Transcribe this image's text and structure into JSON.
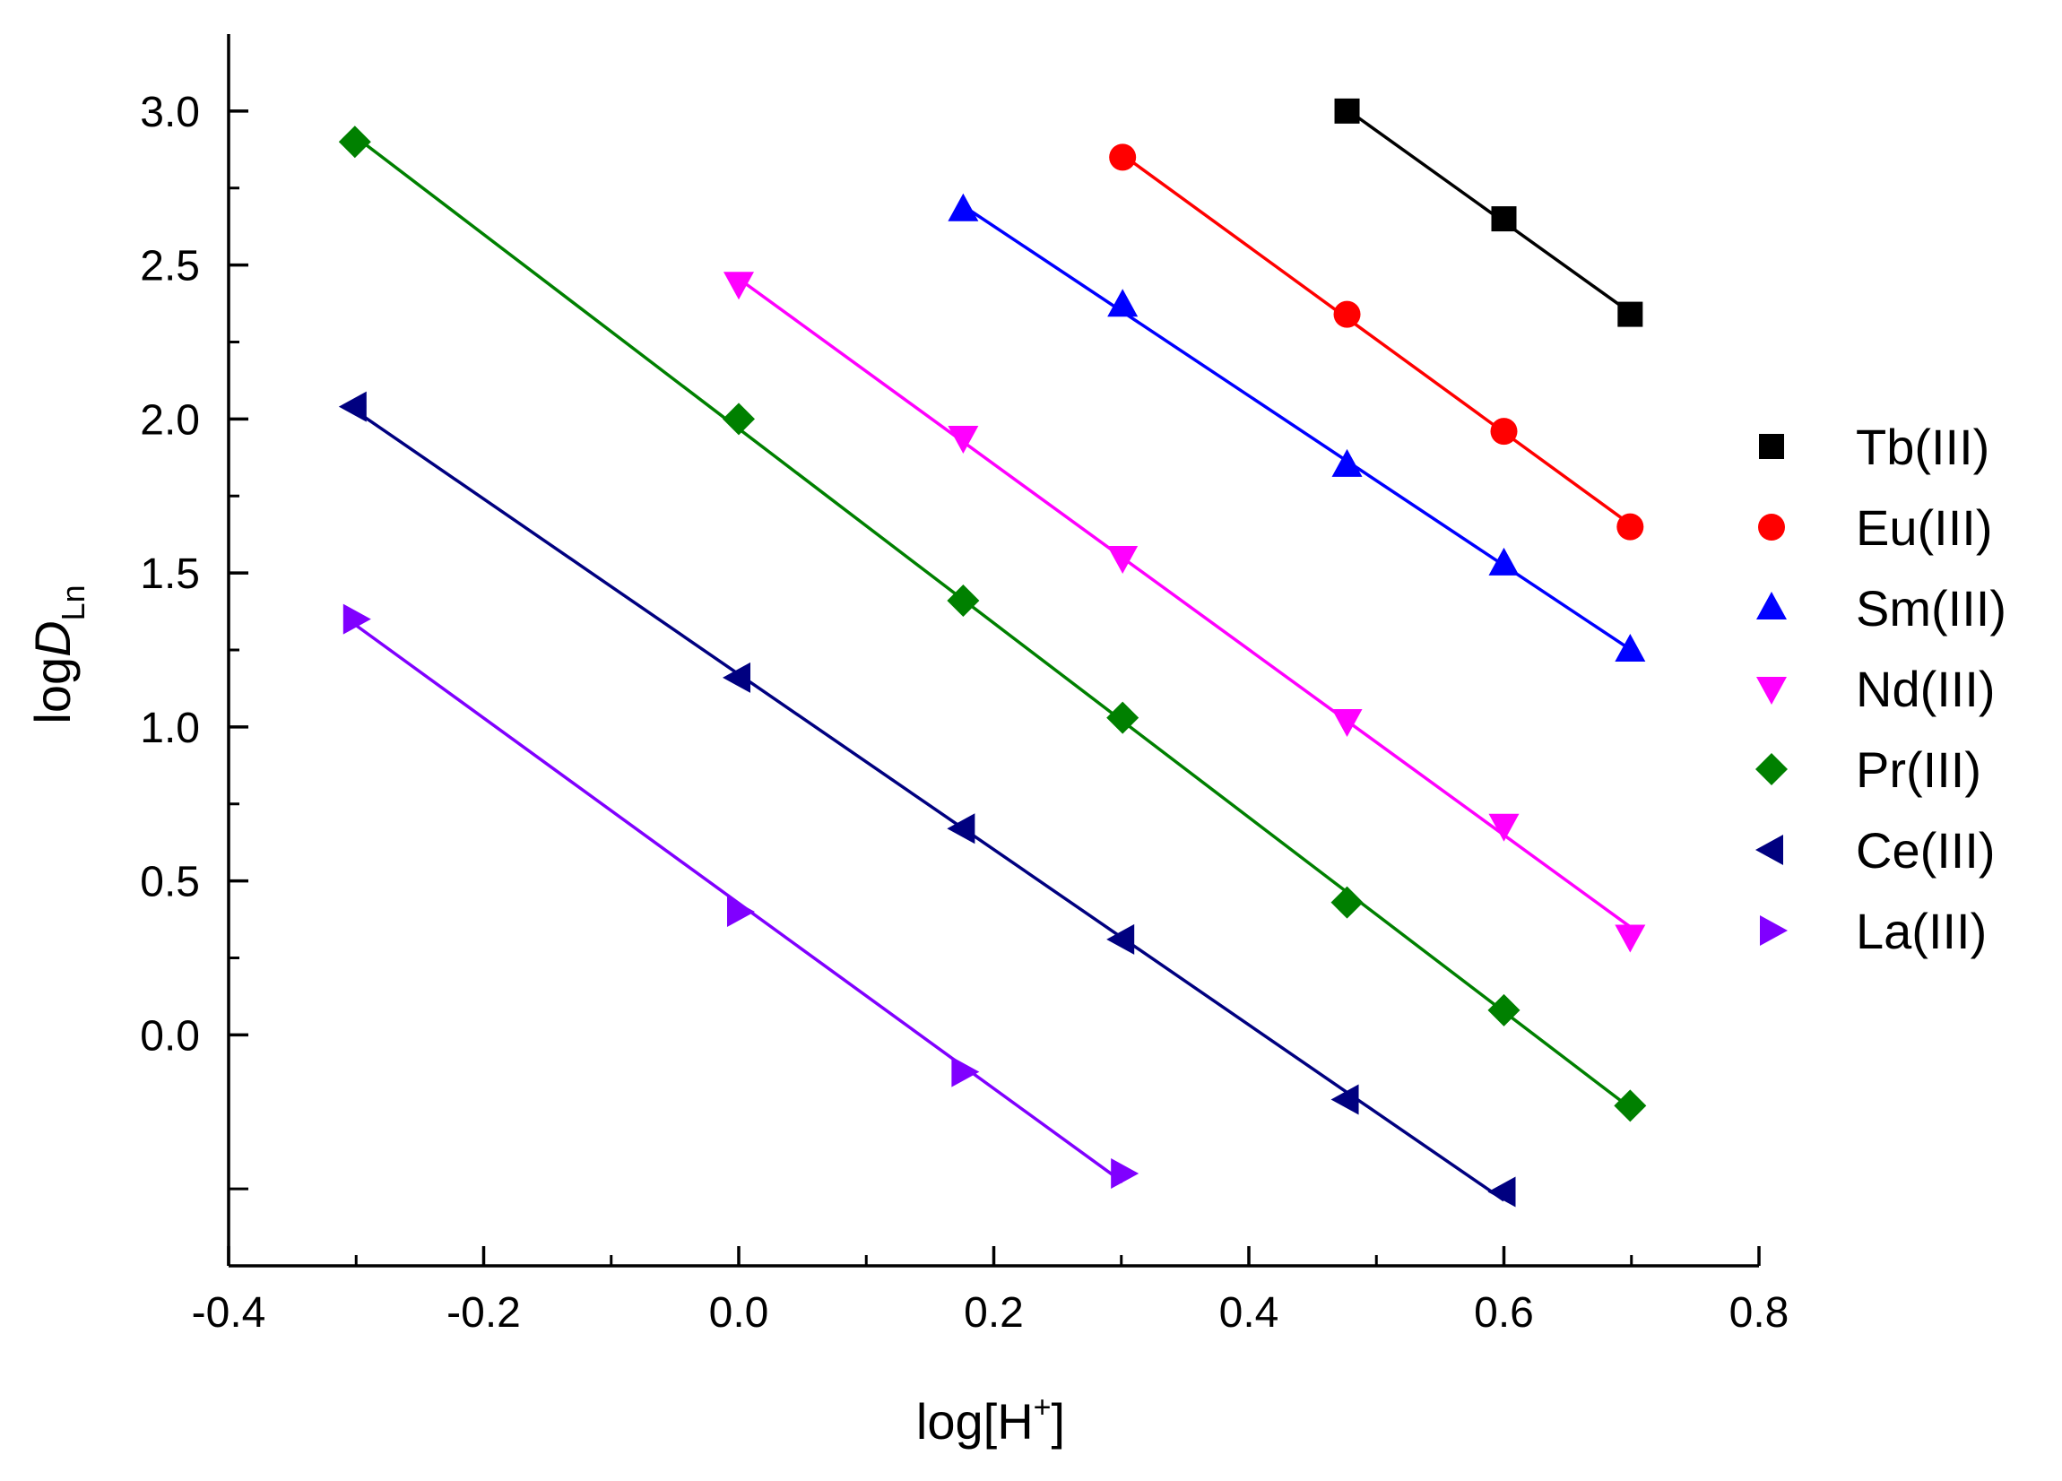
{
  "chart_data": {
    "type": "scatter",
    "title": "",
    "xlabel": {
      "base": "log[H",
      "sup": "+",
      "end": "]"
    },
    "ylabel": {
      "base": "log",
      "italic": "D",
      "sub": "Ln"
    },
    "xlim": [
      -0.4,
      0.8
    ],
    "ylim": [
      -0.75,
      3.25
    ],
    "xticks": [
      -0.4,
      -0.2,
      0.0,
      0.2,
      0.4,
      0.6,
      0.8
    ],
    "xtick_labels": [
      "-0.4",
      "-0.2",
      "0.0",
      "0.2",
      "0.4",
      "0.6",
      "0.8"
    ],
    "xminor": [
      -0.3,
      -0.1,
      0.1,
      0.3,
      0.5,
      0.7
    ],
    "yticks": [
      0.0,
      0.5,
      1.0,
      1.5,
      2.0,
      2.5,
      3.0
    ],
    "ytick_labels": [
      "0.0",
      "0.5",
      "1.0",
      "1.5",
      "2.0",
      "2.5",
      "3.0"
    ],
    "yminor": [
      -0.5,
      0.25,
      0.75,
      1.25,
      1.75,
      2.25,
      2.75
    ],
    "legend_position": "right",
    "grid": false,
    "series": [
      {
        "name": "Tb(III)",
        "color": "#000000",
        "marker": "square",
        "x": [
          0.477,
          0.6,
          0.699
        ],
        "y": [
          3.0,
          2.65,
          2.34
        ]
      },
      {
        "name": "Eu(III)",
        "color": "#ff0000",
        "marker": "circle",
        "x": [
          0.301,
          0.477,
          0.6,
          0.699
        ],
        "y": [
          2.85,
          2.34,
          1.96,
          1.65
        ]
      },
      {
        "name": "Sm(III)",
        "color": "#0000ff",
        "marker": "triangle-up",
        "x": [
          0.176,
          0.301,
          0.477,
          0.6,
          0.699
        ],
        "y": [
          2.68,
          2.37,
          1.85,
          1.53,
          1.25
        ]
      },
      {
        "name": "Nd(III)",
        "color": "#ff00ff",
        "marker": "triangle-down",
        "x": [
          0.0,
          0.176,
          0.301,
          0.477,
          0.6,
          0.699
        ],
        "y": [
          2.44,
          1.94,
          1.55,
          1.02,
          0.68,
          0.32
        ]
      },
      {
        "name": "Pr(III)",
        "color": "#008000",
        "marker": "diamond",
        "x": [
          -0.301,
          0.0,
          0.176,
          0.301,
          0.477,
          0.6,
          0.699
        ],
        "y": [
          2.9,
          2.0,
          1.41,
          1.03,
          0.43,
          0.08,
          -0.23
        ]
      },
      {
        "name": "Ce(III)",
        "color": "#000080",
        "marker": "triangle-left",
        "x": [
          -0.301,
          0.0,
          0.176,
          0.301,
          0.477,
          0.6
        ],
        "y": [
          2.04,
          1.16,
          0.67,
          0.31,
          -0.21,
          -0.51
        ]
      },
      {
        "name": "La(III)",
        "color": "#8000ff",
        "marker": "triangle-right",
        "x": [
          -0.301,
          0.0,
          0.176,
          0.301
        ],
        "y": [
          1.35,
          0.4,
          -0.12,
          -0.45
        ]
      }
    ]
  }
}
